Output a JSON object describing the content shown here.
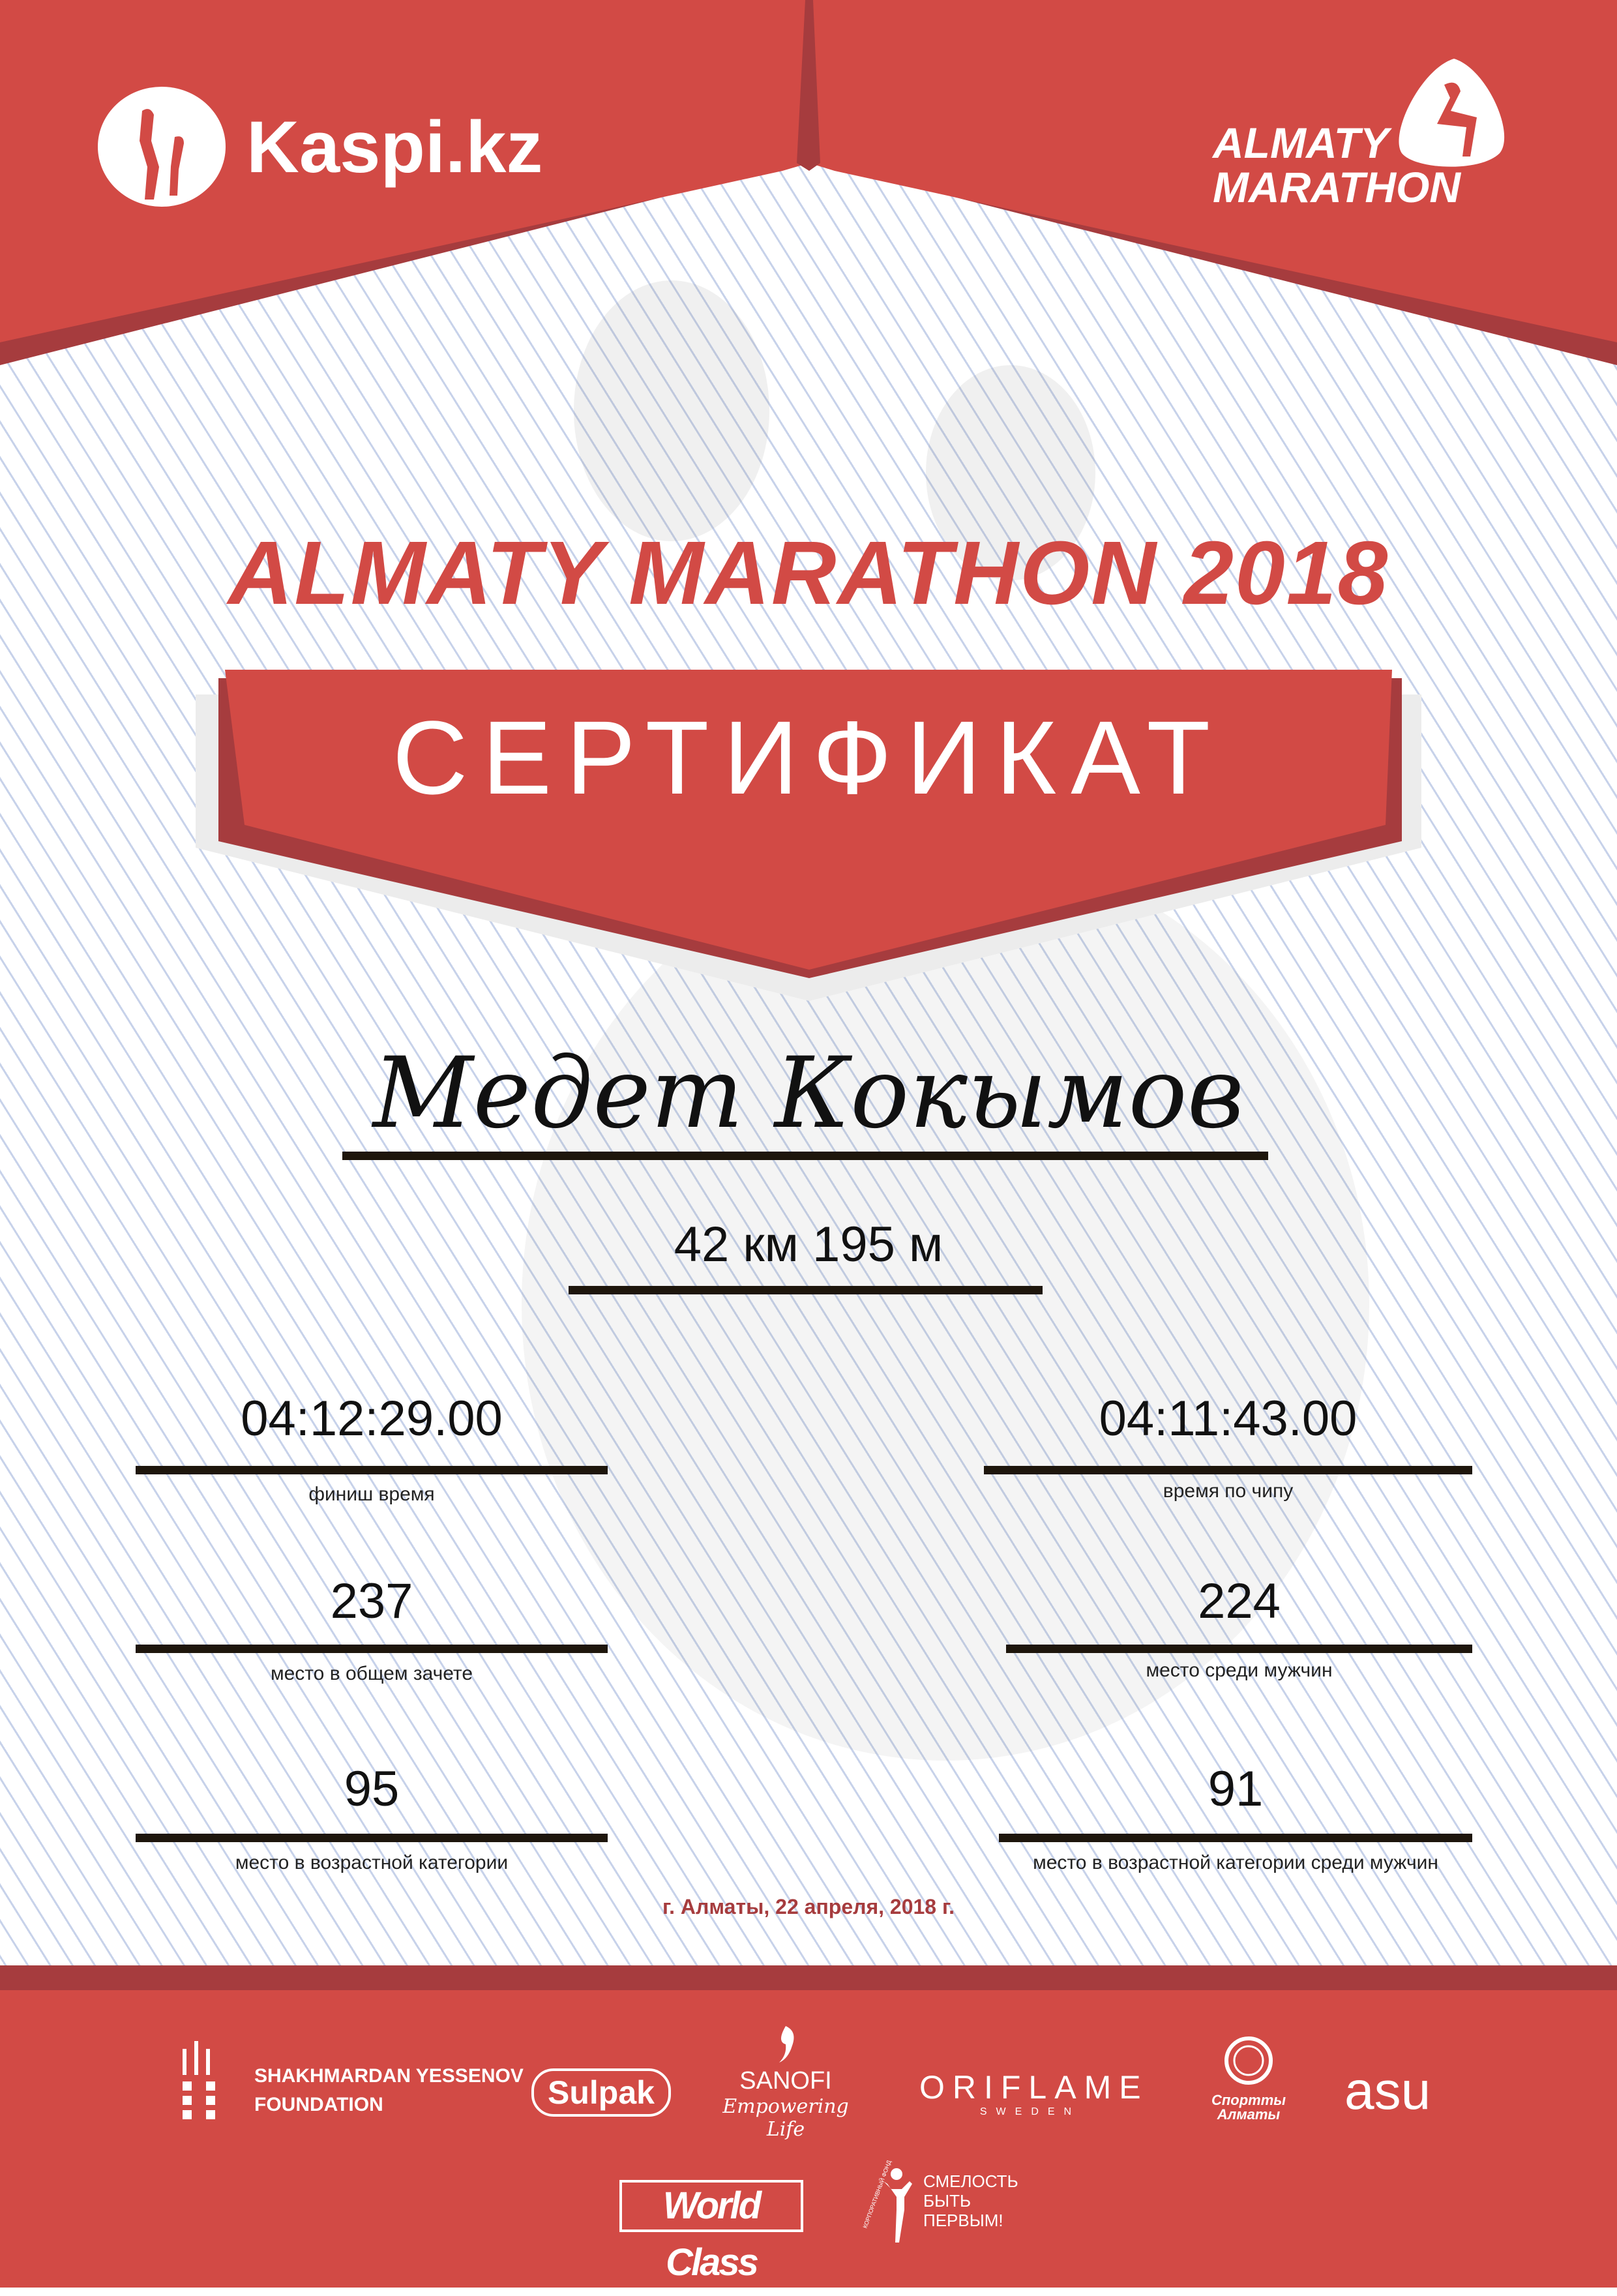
{
  "colors": {
    "primary_red": "#d24a45",
    "dark_red": "#a63c3e",
    "line_blue": "#c7d2ea"
  },
  "header": {
    "left_logo": "Kaspi.kz",
    "right_logo": {
      "line1": "ALMATY",
      "line2": "MARATHON"
    }
  },
  "event_title": "ALMATY MARATHON 2018",
  "certificate_label": "СЕРТИФИКАТ",
  "participant_name": "Медет Кокымов",
  "distance": "42 км 195 м",
  "results": [
    {
      "value": "04:12:29.00",
      "label": "финиш время"
    },
    {
      "value": "04:11:43.00",
      "label": "время по чипу"
    },
    {
      "value": "237",
      "label": "место в общем зачете"
    },
    {
      "value": "224",
      "label": "место среди мужчин"
    },
    {
      "value": "95",
      "label": "место в возрастной категории"
    },
    {
      "value": "91",
      "label": "место в возрастной категории среди мужчин"
    }
  ],
  "date_place": "г. Алматы, 22 апреля, 2018 г.",
  "sponsors": {
    "yessenov": {
      "line1": "SHAKHMARDAN YESSENOV",
      "line2": "FOUNDATION"
    },
    "sulpak": "Sulpak",
    "sanofi": {
      "name": "SANOFI",
      "tagline": "Empowering Life"
    },
    "oriflame": {
      "name": "ORIFLAME",
      "sub": "SWEDEN"
    },
    "sport_almaty": {
      "line1": "Спортты",
      "line2": "Алматы"
    },
    "asu": "asu",
    "worldclass": "World Class",
    "smelost": {
      "arc": "КОРПОРАТИВНЫЙ ФОНД",
      "line1": "СМЕЛОСТЬ",
      "line2": "БЫТЬ",
      "line3": "ПЕРВЫМ!"
    }
  }
}
